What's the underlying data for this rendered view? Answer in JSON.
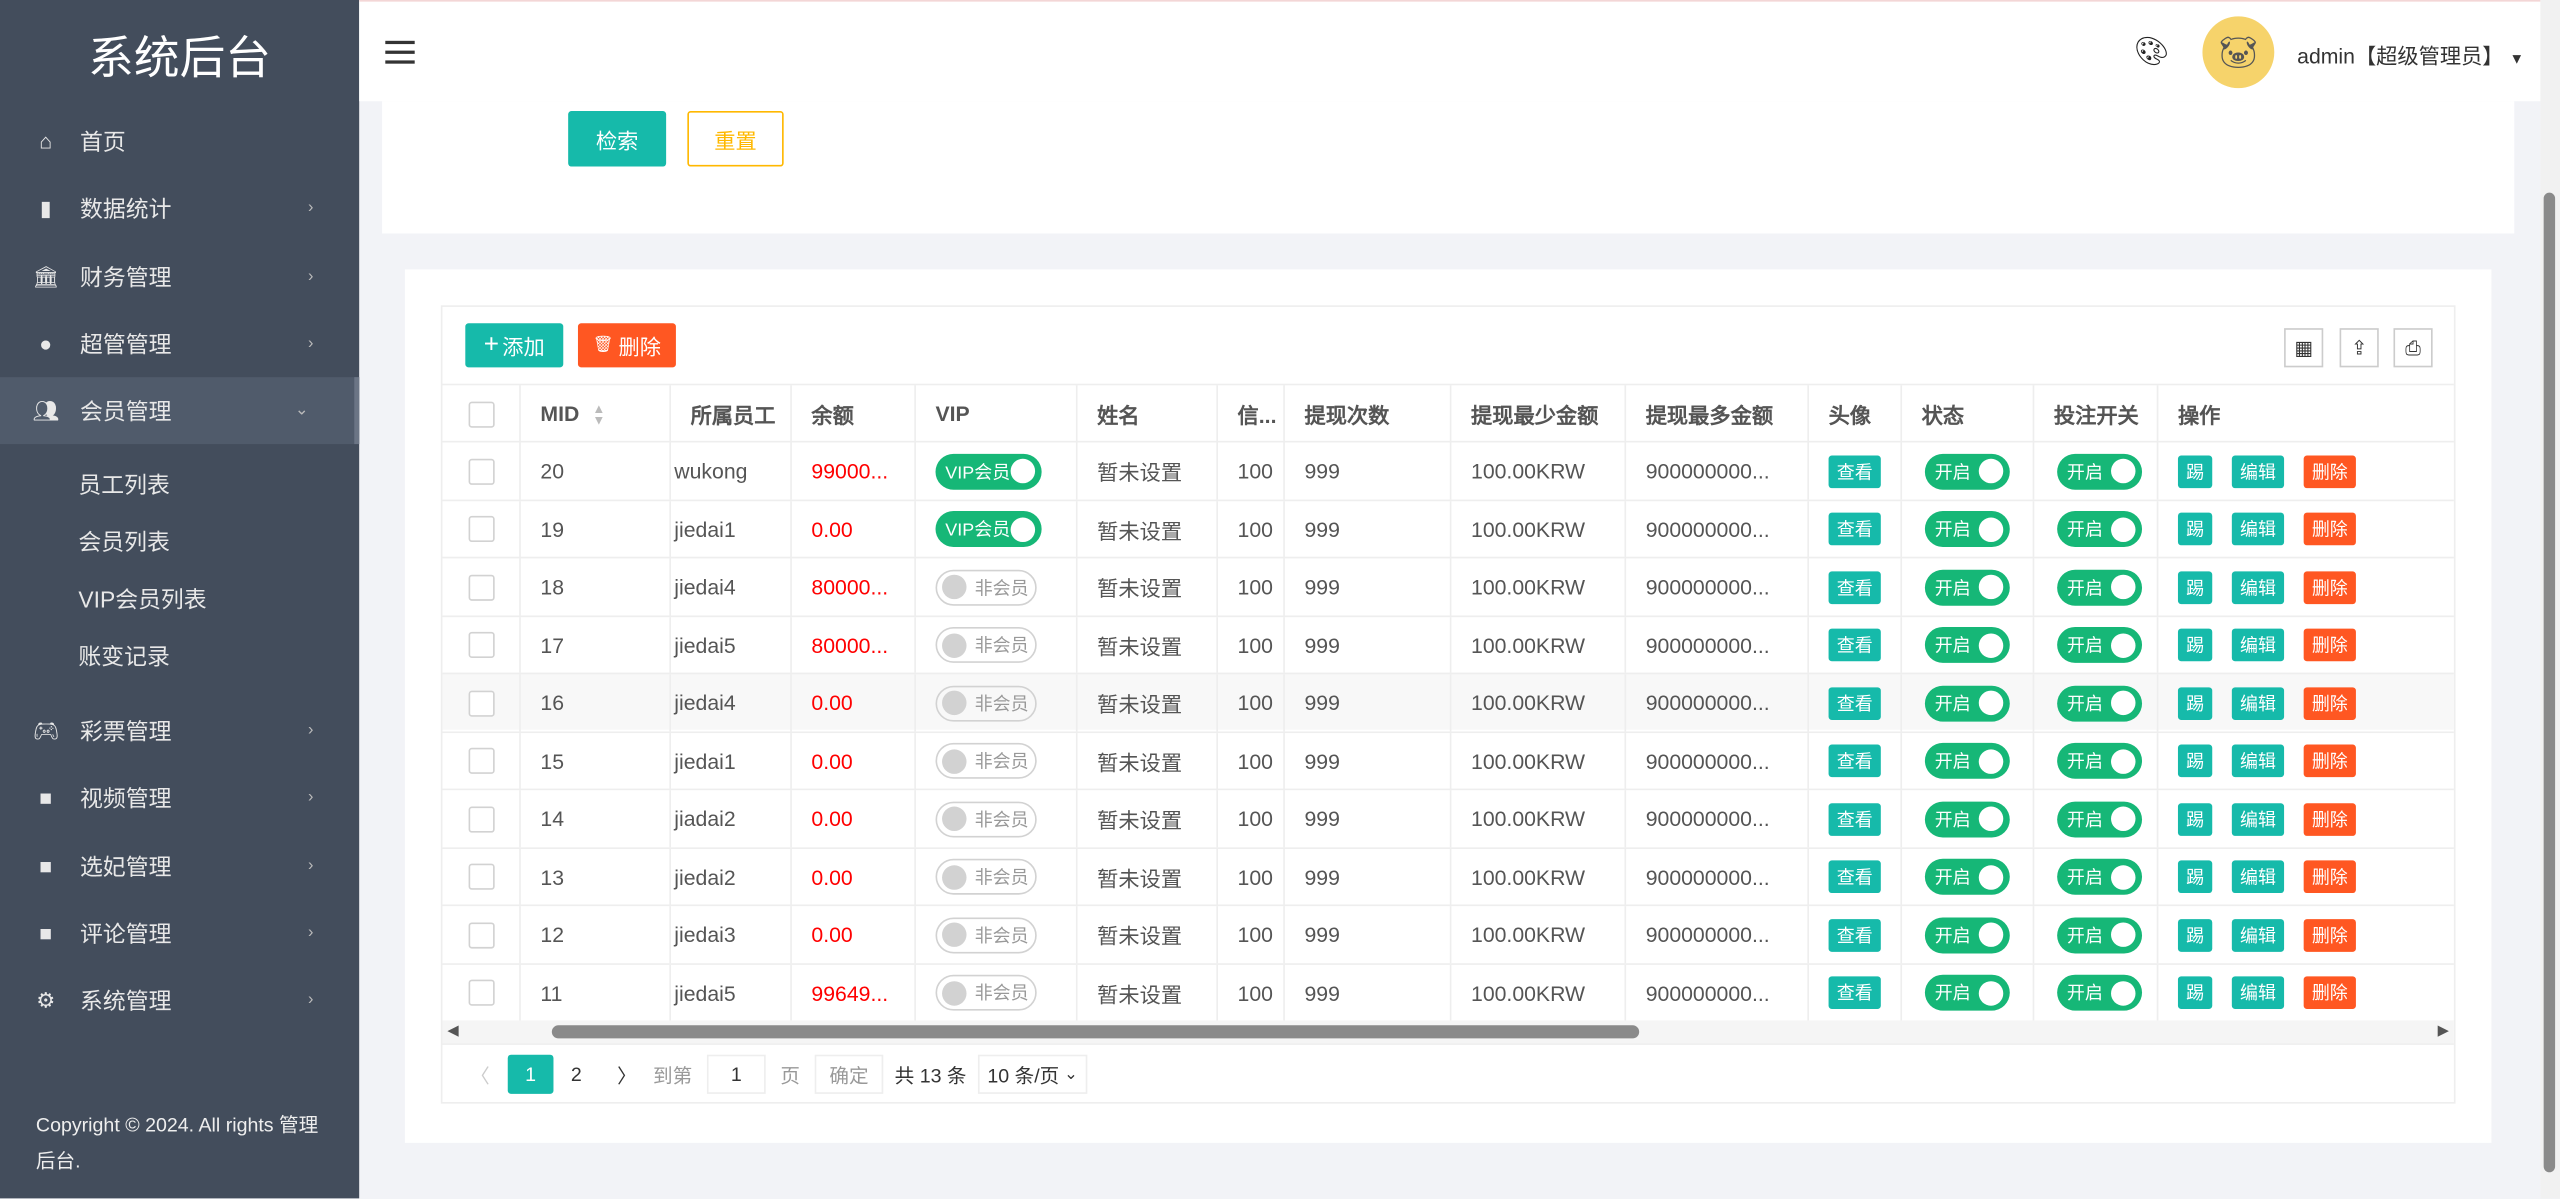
{
  "sidebar": {
    "title": "系统后台",
    "items": [
      {
        "label": "首页",
        "icon": "home-icon"
      },
      {
        "label": "数据统计",
        "icon": "bar-chart-icon"
      },
      {
        "label": "财务管理",
        "icon": "bank-icon"
      },
      {
        "label": "超管管理",
        "icon": "user-icon"
      },
      {
        "label": "会员管理",
        "icon": "users-icon",
        "expanded": true
      },
      {
        "label": "彩票管理",
        "icon": "gamepad-icon"
      },
      {
        "label": "视频管理",
        "icon": "video-icon"
      },
      {
        "label": "选妃管理",
        "icon": "video-icon"
      },
      {
        "label": "评论管理",
        "icon": "video-icon"
      },
      {
        "label": "系统管理",
        "icon": "gear-icon"
      }
    ],
    "subitems": [
      "员工列表",
      "会员列表",
      "VIP会员列表",
      "账变记录"
    ],
    "copyright": "Copyright © 2024. All rights 管理后台."
  },
  "header": {
    "user": "admin【超级管理员】"
  },
  "search": {
    "search_label": "检索",
    "reset_label": "重置"
  },
  "toolbar": {
    "add_label": "添加",
    "delete_label": "删除"
  },
  "table": {
    "columns": [
      "MID",
      "所属员工",
      "余额",
      "VIP",
      "姓名",
      "信...",
      "提现次数",
      "提现最少金额",
      "提现最多金额",
      "头像",
      "状态",
      "投注开关",
      "操作"
    ],
    "rows": [
      {
        "mid": "20",
        "staff": "wukong",
        "balance": "99000...",
        "vip": "VIP会员",
        "vip_on": true
      },
      {
        "mid": "19",
        "staff": "jiedai1",
        "balance": "0.00",
        "vip": "VIP会员",
        "vip_on": true
      },
      {
        "mid": "18",
        "staff": "jiedai4",
        "balance": "80000...",
        "vip": "非会员",
        "vip_on": false
      },
      {
        "mid": "17",
        "staff": "jiedai5",
        "balance": "80000...",
        "vip": "非会员",
        "vip_on": false
      },
      {
        "mid": "16",
        "staff": "jiedai4",
        "balance": "0.00",
        "vip": "非会员",
        "vip_on": false
      },
      {
        "mid": "15",
        "staff": "jiedai1",
        "balance": "0.00",
        "vip": "非会员",
        "vip_on": false
      },
      {
        "mid": "14",
        "staff": "jiadai2",
        "balance": "0.00",
        "vip": "非会员",
        "vip_on": false
      },
      {
        "mid": "13",
        "staff": "jiedai2",
        "balance": "0.00",
        "vip": "非会员",
        "vip_on": false
      },
      {
        "mid": "12",
        "staff": "jiedai3",
        "balance": "0.00",
        "vip": "非会员",
        "vip_on": false
      },
      {
        "mid": "11",
        "staff": "jiedai5",
        "balance": "99649...",
        "vip": "非会员",
        "vip_on": false
      }
    ],
    "name": "暂未设置",
    "credit": "100",
    "withdraw_count": "999",
    "min_amount": "100.00KRW",
    "max_amount": "900000000...",
    "view_label": "查看",
    "status_label": "开启",
    "bet_label": "开启",
    "kick_label": "踢",
    "edit_label": "编辑",
    "del_label": "删除"
  },
  "pagination": {
    "prev": "〈",
    "pages": [
      "1",
      "2"
    ],
    "current": "1",
    "next": "〉",
    "goto_label": "到第",
    "goto_value": "1",
    "page_unit": "页",
    "confirm_label": "确定",
    "total": "共 13 条",
    "page_size": "10 条/页"
  },
  "colors": {
    "sidebar": "#434d5c",
    "primary": "#16baaa",
    "danger": "#ff5722",
    "warn": "#ffb800",
    "switch_on": "#16b777"
  }
}
